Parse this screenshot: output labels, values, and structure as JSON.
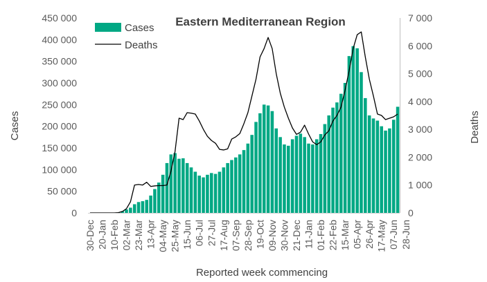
{
  "chart_data": {
    "type": "bar+line",
    "title": "Eastern Mediterranean Region",
    "xlabel": "Reported week commencing",
    "ylabel_left": "Cases",
    "ylabel_right": "Deaths",
    "ylim_left": [
      0,
      450000
    ],
    "ylim_right": [
      0,
      7000
    ],
    "yticks_left": [
      "0",
      "50 000",
      "100 000",
      "150 000",
      "200 000",
      "250 000",
      "300 000",
      "350 000",
      "400 000",
      "450 000"
    ],
    "yticks_right": [
      "0",
      "1 000",
      "2 000",
      "3 000",
      "4 000",
      "5 000",
      "6 000",
      "7 000"
    ],
    "xtick_labels": [
      "30-Dec",
      "20-Jan",
      "10-Feb",
      "02-Mar",
      "23-Mar",
      "13-Apr",
      "04-May",
      "25-May",
      "15-Jun",
      "06-Jul",
      "27-Jul",
      "17-Aug",
      "07-Sep",
      "28-Sep",
      "19-Oct",
      "09-Nov",
      "30-Nov",
      "21-Dec",
      "11-Jan",
      "01-Feb",
      "22-Feb",
      "15-Mar",
      "05-Apr",
      "26-Apr",
      "17-May",
      "07-Jun",
      "28-Jun"
    ],
    "legend": {
      "position": "top-left",
      "entries": [
        "Cases",
        "Deaths"
      ]
    },
    "grid": false,
    "colors": {
      "cases": "#00a884",
      "deaths": "#000000"
    },
    "series": [
      {
        "name": "Cases",
        "type": "bar",
        "axis": "left",
        "values": [
          0,
          0,
          0,
          0,
          0,
          0,
          200,
          1000,
          4000,
          8000,
          12000,
          20000,
          25000,
          27000,
          30000,
          40000,
          55000,
          70000,
          88000,
          115000,
          135000,
          138000,
          125000,
          126000,
          115000,
          105000,
          95000,
          86000,
          82000,
          88000,
          92000,
          90000,
          95000,
          105000,
          115000,
          122000,
          128000,
          135000,
          145000,
          160000,
          180000,
          210000,
          230000,
          250000,
          248000,
          235000,
          195000,
          175000,
          158000,
          155000,
          170000,
          178000,
          183000,
          175000,
          160000,
          158000,
          170000,
          182000,
          205000,
          225000,
          243000,
          255000,
          275000,
          300000,
          362000,
          385000,
          380000,
          325000,
          265000,
          225000,
          218000,
          213000,
          200000,
          190000,
          195000,
          215000,
          245000
        ]
      },
      {
        "name": "Deaths",
        "type": "line",
        "axis": "right",
        "values": [
          0,
          0,
          0,
          0,
          0,
          0,
          0,
          10,
          50,
          150,
          400,
          1000,
          1020,
          1000,
          1100,
          950,
          970,
          980,
          980,
          1000,
          1500,
          2200,
          3400,
          3350,
          3600,
          3580,
          3550,
          3300,
          3000,
          2750,
          2600,
          2500,
          2280,
          2260,
          2300,
          2650,
          2730,
          2850,
          3200,
          3600,
          4200,
          4800,
          5600,
          5900,
          6300,
          5900,
          5000,
          4300,
          3800,
          3400,
          3050,
          2820,
          2900,
          3150,
          2830,
          2550,
          2450,
          2550,
          2800,
          2950,
          3300,
          3500,
          3800,
          4400,
          5100,
          5900,
          6400,
          6500,
          5600,
          4800,
          4200,
          3550,
          3500,
          3350,
          3400,
          3450,
          3550
        ]
      }
    ]
  }
}
